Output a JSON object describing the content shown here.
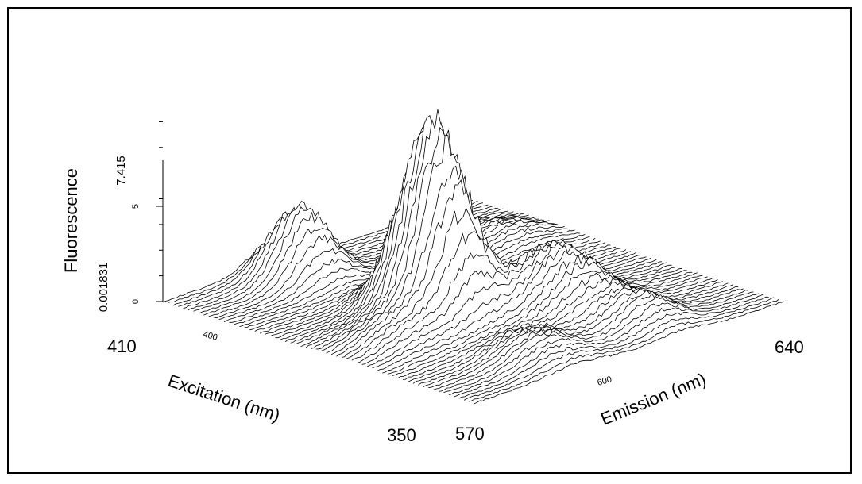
{
  "chart_data": {
    "type": "surface-3d",
    "zlabel": "Fluorescence",
    "xlabel": "Excitation (nm)",
    "ylabel": "Emission (nm)",
    "zlim": [
      0.001831,
      7.415
    ],
    "z_end_labels": [
      "0.001831",
      "7.415"
    ],
    "z_ticks": [
      0,
      5
    ],
    "excitation_range": [
      350,
      410
    ],
    "excitation_end_labels": [
      "410",
      "350"
    ],
    "excitation_ticks": [
      400
    ],
    "emission_range": [
      570,
      640
    ],
    "emission_end_labels": [
      "570",
      "640"
    ],
    "emission_ticks": [
      600
    ],
    "peaks": [
      {
        "excitation": 380,
        "emission": 596,
        "value": 7.4
      },
      {
        "excitation": 404,
        "emission": 594,
        "value": 2.7
      },
      {
        "excitation": 370,
        "emission": 612,
        "value": 2.4
      },
      {
        "excitation": 376,
        "emission": 583,
        "value": 0.9
      },
      {
        "excitation": 358,
        "emission": 593,
        "value": 0.9
      },
      {
        "excitation": 395,
        "emission": 630,
        "value": 0.6
      },
      {
        "excitation": 357,
        "emission": 617,
        "value": 0.9
      }
    ],
    "grid": false,
    "colors": {
      "line": "#000000",
      "fill": "#ffffff"
    }
  }
}
